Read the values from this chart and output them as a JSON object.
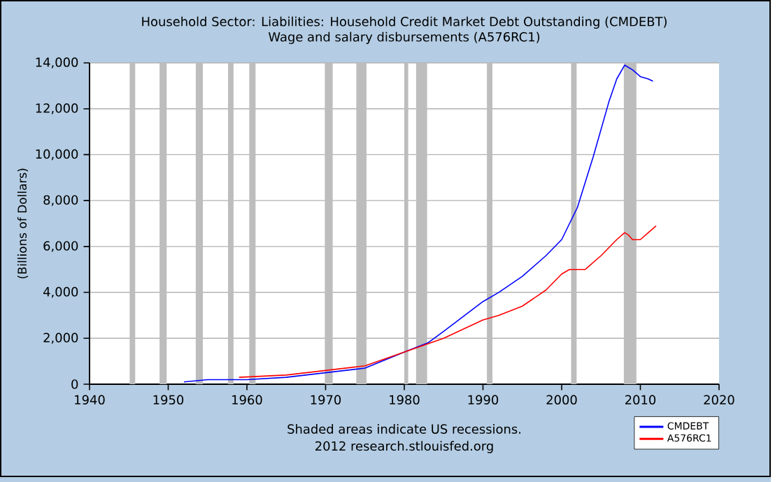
{
  "chart_data": {
    "type": "line",
    "title": "Household Sector: Liabilities: Household Credit Market Debt Outstanding (CMDEBT)",
    "subtitle": "Wage and salary disbursements (A576RC1)",
    "ylabel": "(Billions of Dollars)",
    "xlim": [
      1940,
      2020
    ],
    "xticks": [
      1940,
      1950,
      1960,
      1970,
      1980,
      1990,
      2000,
      2010,
      2020
    ],
    "ylim": [
      0,
      14000
    ],
    "yticks": [
      {
        "value": 0,
        "label": "0"
      },
      {
        "value": 2000,
        "label": "2,000"
      },
      {
        "value": 4000,
        "label": "4,000"
      },
      {
        "value": 6000,
        "label": "6,000"
      },
      {
        "value": 8000,
        "label": "8,000"
      },
      {
        "value": 10000,
        "label": "10,000"
      },
      {
        "value": 12000,
        "label": "12,000"
      },
      {
        "value": 14000,
        "label": "14,000"
      }
    ],
    "grid": "y",
    "legend": "bottom right",
    "marker": "none",
    "line_style": "solid",
    "series": [
      {
        "name": "CMDEBT",
        "color": "#0000ff",
        "x": [
          1952,
          1955,
          1960,
          1965,
          1970,
          1975,
          1980,
          1983,
          1985,
          1990,
          1992,
          1995,
          1998,
          2000,
          2002,
          2004,
          2006,
          2007,
          2008,
          2009,
          2010,
          2011,
          2011.6
        ],
        "values": [
          100,
          200,
          200,
          300,
          500,
          700,
          1400,
          1800,
          2300,
          3600,
          4000,
          4700,
          5600,
          6300,
          7700,
          9900,
          12300,
          13300,
          13900,
          13700,
          13400,
          13300,
          13200
        ]
      },
      {
        "name": "A576RC1",
        "color": "#ff0000",
        "x": [
          1959,
          1965,
          1970,
          1975,
          1980,
          1985,
          1990,
          1992,
          1995,
          1998,
          2000,
          2001,
          2003,
          2005,
          2007,
          2008,
          2008.5,
          2009,
          2010,
          2011,
          2012
        ],
        "values": [
          300,
          400,
          600,
          800,
          1400,
          2000,
          2800,
          3000,
          3400,
          4100,
          4800,
          5000,
          5000,
          5600,
          6300,
          6600,
          6500,
          6300,
          6300,
          6600,
          6900
        ]
      }
    ],
    "bands": [
      {
        "axis": "x",
        "from": 1945.1,
        "to": 1945.8,
        "color": "#bdbdbd"
      },
      {
        "axis": "x",
        "from": 1948.9,
        "to": 1949.8,
        "color": "#bdbdbd"
      },
      {
        "axis": "x",
        "from": 1953.5,
        "to": 1954.4,
        "color": "#bdbdbd"
      },
      {
        "axis": "x",
        "from": 1957.6,
        "to": 1958.3,
        "color": "#bdbdbd"
      },
      {
        "axis": "x",
        "from": 1960.3,
        "to": 1961.1,
        "color": "#bdbdbd"
      },
      {
        "axis": "x",
        "from": 1969.9,
        "to": 1970.9,
        "color": "#bdbdbd"
      },
      {
        "axis": "x",
        "from": 1973.9,
        "to": 1975.2,
        "color": "#bdbdbd"
      },
      {
        "axis": "x",
        "from": 1980.0,
        "to": 1980.5,
        "color": "#bdbdbd"
      },
      {
        "axis": "x",
        "from": 1981.5,
        "to": 1982.9,
        "color": "#bdbdbd"
      },
      {
        "axis": "x",
        "from": 1990.5,
        "to": 1991.2,
        "color": "#bdbdbd"
      },
      {
        "axis": "x",
        "from": 2001.2,
        "to": 2001.9,
        "color": "#bdbdbd"
      },
      {
        "axis": "x",
        "from": 2007.9,
        "to": 2009.5,
        "color": "#bdbdbd"
      }
    ],
    "annotations": [
      "Shaded areas indicate US recessions.",
      "2012 research.stlouisfed.org"
    ]
  }
}
